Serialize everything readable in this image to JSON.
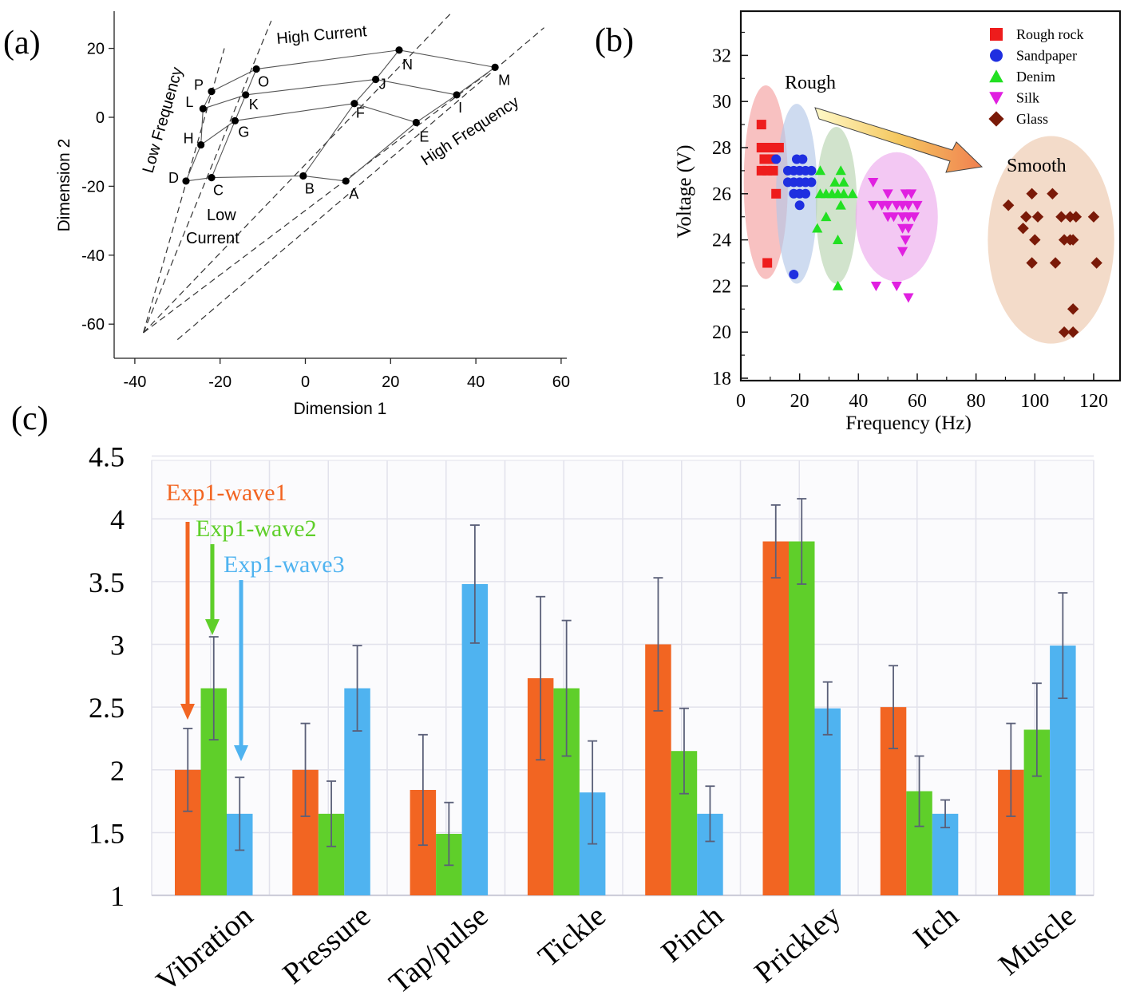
{
  "panels": {
    "a": {
      "label": "(a)"
    },
    "b": {
      "label": "(b)"
    },
    "c": {
      "label": "(c)"
    }
  },
  "colors": {
    "wave1": "#f26522",
    "wave2": "#5fcf2a",
    "wave3": "#4fb3f0",
    "rough_rock": "#ee1c1c",
    "sandpaper": "#1f2fe0",
    "denim": "#22e022",
    "silk": "#e020e0",
    "glass": "#7a1a08"
  },
  "chart_data": [
    {
      "id": "a",
      "type": "scatter",
      "title": "",
      "xlabel": "Dimension 1",
      "ylabel": "Dimension 2",
      "xlim": [
        -45,
        60
      ],
      "ylim": [
        -70,
        30
      ],
      "xticks": [
        -40,
        -20,
        0,
        20,
        40,
        60
      ],
      "yticks": [
        20,
        0,
        -20,
        -40,
        -60
      ],
      "points": [
        {
          "name": "A",
          "x": 9.5,
          "y": -18.5
        },
        {
          "name": "B",
          "x": -0.5,
          "y": -17
        },
        {
          "name": "C",
          "x": -22,
          "y": -17.5
        },
        {
          "name": "D",
          "x": -28,
          "y": -18.5
        },
        {
          "name": "E",
          "x": 26,
          "y": -1.5
        },
        {
          "name": "F",
          "x": 11.5,
          "y": 4
        },
        {
          "name": "G",
          "x": -16.5,
          "y": -1
        },
        {
          "name": "H",
          "x": -24.5,
          "y": -8
        },
        {
          "name": "I",
          "x": 35.5,
          "y": 6.5
        },
        {
          "name": "J",
          "x": 16.5,
          "y": 11
        },
        {
          "name": "K",
          "x": -14,
          "y": 6.5
        },
        {
          "name": "L",
          "x": -24,
          "y": 2.5
        },
        {
          "name": "M",
          "x": 44.5,
          "y": 14.5
        },
        {
          "name": "N",
          "x": 22,
          "y": 19.5
        },
        {
          "name": "O",
          "x": -11.5,
          "y": 14
        },
        {
          "name": "P",
          "x": -22,
          "y": 7.5
        }
      ],
      "grid_lines": [
        [
          "D",
          "C",
          "B",
          "A"
        ],
        [
          "H",
          "G",
          "F",
          "E"
        ],
        [
          "L",
          "K",
          "J",
          "I"
        ],
        [
          "P",
          "O",
          "N",
          "M"
        ],
        [
          "D",
          "H",
          "L",
          "P"
        ],
        [
          "C",
          "G",
          "K",
          "O"
        ],
        [
          "B",
          "F",
          "J",
          "N"
        ],
        [
          "A",
          "E",
          "I",
          "M"
        ]
      ],
      "annotations": [
        "High Current",
        "Low Frequency",
        "High Frequency",
        "Low",
        "Current"
      ]
    },
    {
      "id": "b",
      "type": "scatter",
      "title": "",
      "xlabel": "Frequency (Hz)",
      "ylabel": "Voltage (V)",
      "xlim": [
        0,
        130
      ],
      "ylim": [
        18,
        34
      ],
      "xticks": [
        0,
        20,
        40,
        60,
        80,
        100,
        120
      ],
      "yticks": [
        18,
        20,
        22,
        24,
        26,
        28,
        30,
        32
      ],
      "annotations": [
        "Rough",
        "Smooth"
      ],
      "series": [
        {
          "name": "Rough rock",
          "marker": "square",
          "color": "#ee1c1c",
          "points": [
            [
              7,
              29
            ],
            [
              7,
              28
            ],
            [
              9,
              28
            ],
            [
              11,
              28
            ],
            [
              13,
              28
            ],
            [
              8,
              27.5
            ],
            [
              11,
              27.5
            ],
            [
              7,
              27
            ],
            [
              9,
              27
            ],
            [
              11,
              27
            ],
            [
              12,
              26
            ],
            [
              9,
              23
            ]
          ]
        },
        {
          "name": "Sandpaper",
          "marker": "circle",
          "color": "#1f2fe0",
          "points": [
            [
              12,
              27.5
            ],
            [
              19,
              27.5
            ],
            [
              21,
              27.5
            ],
            [
              16,
              27
            ],
            [
              18,
              27
            ],
            [
              20,
              27
            ],
            [
              22,
              27
            ],
            [
              24,
              27
            ],
            [
              16,
              26.5
            ],
            [
              18,
              26.5
            ],
            [
              20,
              26.5
            ],
            [
              22,
              26.5
            ],
            [
              24,
              26.5
            ],
            [
              18,
              26
            ],
            [
              20,
              26
            ],
            [
              22,
              26
            ],
            [
              20,
              25.5
            ],
            [
              18,
              22.5
            ]
          ]
        },
        {
          "name": "Denim",
          "marker": "triangle-up",
          "color": "#22e022",
          "points": [
            [
              27,
              27
            ],
            [
              34,
              27
            ],
            [
              32,
              26.5
            ],
            [
              35,
              26.5
            ],
            [
              27,
              26
            ],
            [
              29,
              26
            ],
            [
              31,
              26
            ],
            [
              33,
              26
            ],
            [
              35,
              26
            ],
            [
              38,
              26
            ],
            [
              29,
              25
            ],
            [
              34,
              25.5
            ],
            [
              26,
              24.5
            ],
            [
              33,
              24
            ],
            [
              33,
              22
            ]
          ]
        },
        {
          "name": "Silk",
          "marker": "triangle-down",
          "color": "#e020e0",
          "points": [
            [
              45,
              26.5
            ],
            [
              50,
              26
            ],
            [
              56,
              26
            ],
            [
              58,
              26
            ],
            [
              45,
              25.5
            ],
            [
              48,
              25.5
            ],
            [
              50,
              25.5
            ],
            [
              53,
              25.5
            ],
            [
              55,
              25.5
            ],
            [
              57,
              25.5
            ],
            [
              60,
              25.5
            ],
            [
              50,
              25
            ],
            [
              52,
              25
            ],
            [
              55,
              25
            ],
            [
              57,
              25
            ],
            [
              59,
              25
            ],
            [
              55,
              24.5
            ],
            [
              57,
              24.5
            ],
            [
              56,
              24
            ],
            [
              55,
              23.5
            ],
            [
              46,
              22
            ],
            [
              53,
              22
            ],
            [
              57,
              21.5
            ]
          ]
        },
        {
          "name": "Glass",
          "marker": "diamond",
          "color": "#7a1a08",
          "points": [
            [
              91,
              25.5
            ],
            [
              99,
              26
            ],
            [
              106,
              26
            ],
            [
              97,
              25
            ],
            [
              101,
              25
            ],
            [
              109,
              25
            ],
            [
              112,
              25
            ],
            [
              114,
              25
            ],
            [
              120,
              25
            ],
            [
              96,
              24.5
            ],
            [
              100,
              24
            ],
            [
              110,
              24
            ],
            [
              112,
              24
            ],
            [
              113,
              24
            ],
            [
              99,
              23
            ],
            [
              107,
              23
            ],
            [
              121,
              23
            ],
            [
              113,
              21
            ],
            [
              110,
              20
            ],
            [
              113,
              20
            ]
          ]
        }
      ]
    },
    {
      "id": "c",
      "type": "bar",
      "title": "",
      "xlabel": "",
      "ylabel": "",
      "ylim": [
        1,
        4.5
      ],
      "yticks": [
        "4.5",
        "4",
        "3.5",
        "3",
        "2.5",
        "2",
        "1.5",
        "1"
      ],
      "categories": [
        "Vibration",
        "Pressure",
        "Tap/pulse",
        "Tickle",
        "Pinch",
        "Prickley",
        "Itch",
        "Muscle"
      ],
      "series": [
        {
          "name": "Exp1-wave1",
          "color": "#f26522",
          "values": [
            2.0,
            2.0,
            1.84,
            2.73,
            3.0,
            3.82,
            2.5,
            2.0
          ],
          "errors": [
            0.33,
            0.37,
            0.44,
            0.65,
            0.53,
            0.29,
            0.33,
            0.37
          ]
        },
        {
          "name": "Exp1-wave2",
          "color": "#5fcf2a",
          "values": [
            2.65,
            1.65,
            1.49,
            2.65,
            2.15,
            3.82,
            1.83,
            2.32
          ],
          "errors": [
            0.41,
            0.26,
            0.25,
            0.54,
            0.34,
            0.34,
            0.28,
            0.37
          ]
        },
        {
          "name": "Exp1-wave3",
          "color": "#4fb3f0",
          "values": [
            1.65,
            2.65,
            3.48,
            1.82,
            1.65,
            2.49,
            1.65,
            2.99
          ],
          "errors": [
            0.29,
            0.34,
            0.47,
            0.41,
            0.22,
            0.21,
            0.11,
            0.42
          ]
        }
      ]
    }
  ]
}
